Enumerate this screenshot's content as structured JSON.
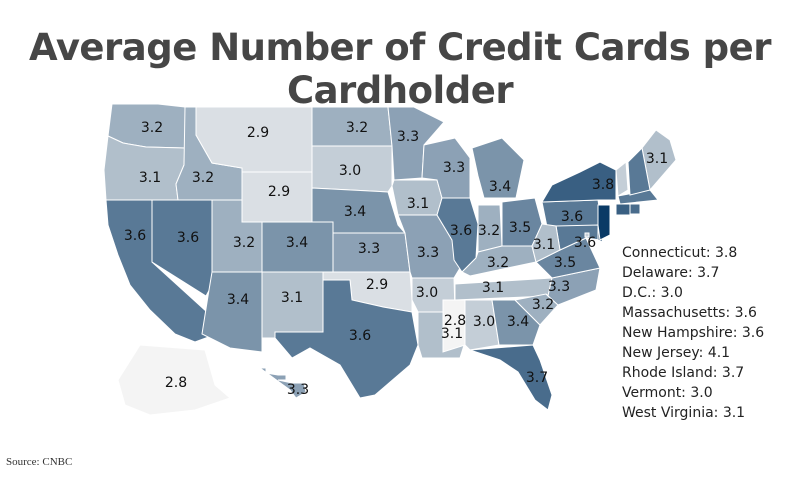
{
  "title": "Average Number of Credit Cards per Cardholder",
  "source": "Source: CNBC",
  "chart_data": {
    "type": "choropleth",
    "region": "United States",
    "value_range": [
      2.8,
      4.1
    ],
    "colors": {
      "low": "#f4f4f4",
      "high": "#0a3a66"
    },
    "states": [
      {
        "state": "Washington",
        "value": 3.2
      },
      {
        "state": "Oregon",
        "value": 3.1
      },
      {
        "state": "California",
        "value": 3.6
      },
      {
        "state": "Nevada",
        "value": 3.6
      },
      {
        "state": "Idaho",
        "value": 3.2
      },
      {
        "state": "Montana",
        "value": 2.9
      },
      {
        "state": "Wyoming",
        "value": 2.9
      },
      {
        "state": "Utah",
        "value": 3.2
      },
      {
        "state": "Arizona",
        "value": 3.4
      },
      {
        "state": "Colorado",
        "value": 3.4
      },
      {
        "state": "New Mexico",
        "value": 3.1
      },
      {
        "state": "North Dakota",
        "value": 3.2
      },
      {
        "state": "South Dakota",
        "value": 3.0
      },
      {
        "state": "Nebraska",
        "value": 3.4
      },
      {
        "state": "Kansas",
        "value": 3.3
      },
      {
        "state": "Oklahoma",
        "value": 2.9
      },
      {
        "state": "Texas",
        "value": 3.6
      },
      {
        "state": "Minnesota",
        "value": 3.3
      },
      {
        "state": "Iowa",
        "value": 3.1
      },
      {
        "state": "Missouri",
        "value": 3.3
      },
      {
        "state": "Arkansas",
        "value": 3.0
      },
      {
        "state": "Louisiana",
        "value": 3.1
      },
      {
        "state": "Wisconsin",
        "value": 3.3
      },
      {
        "state": "Illinois",
        "value": 3.6
      },
      {
        "state": "Michigan",
        "value": 3.4
      },
      {
        "state": "Indiana",
        "value": 3.2
      },
      {
        "state": "Ohio",
        "value": 3.5
      },
      {
        "state": "Kentucky",
        "value": 3.2
      },
      {
        "state": "Tennessee",
        "value": 3.1
      },
      {
        "state": "Mississippi",
        "value": 2.8
      },
      {
        "state": "Alabama",
        "value": 3.0
      },
      {
        "state": "Georgia",
        "value": 3.4
      },
      {
        "state": "Florida",
        "value": 3.7
      },
      {
        "state": "South Carolina",
        "value": 3.2
      },
      {
        "state": "North Carolina",
        "value": 3.3
      },
      {
        "state": "Virginia",
        "value": 3.5
      },
      {
        "state": "Pennsylvania",
        "value": 3.6
      },
      {
        "state": "Maryland",
        "value": 3.6
      },
      {
        "state": "New York",
        "value": 3.8
      },
      {
        "state": "Maine",
        "value": 3.1
      },
      {
        "state": "Alaska",
        "value": 2.8
      },
      {
        "state": "Hawaii",
        "value": 3.3
      },
      {
        "state": "Connecticut",
        "value": 3.8
      },
      {
        "state": "Delaware",
        "value": 3.7
      },
      {
        "state": "D.C.",
        "value": 3.0
      },
      {
        "state": "Massachusetts",
        "value": 3.6
      },
      {
        "state": "New Hampshire",
        "value": 3.6
      },
      {
        "state": "New Jersey",
        "value": 4.1
      },
      {
        "state": "Rhode Island",
        "value": 3.7
      },
      {
        "state": "Vermont",
        "value": 3.0
      },
      {
        "state": "West Virginia",
        "value": 3.1
      }
    ],
    "side_labels": [
      "Connecticut: 3.8",
      "Delaware: 3.7",
      "D.C.: 3.0",
      "Massachusetts: 3.6",
      "New Hampshire: 3.6",
      "New Jersey: 4.1",
      "Rhode Island: 3.7",
      "Vermont: 3.0",
      "West Virginia: 3.1"
    ]
  }
}
